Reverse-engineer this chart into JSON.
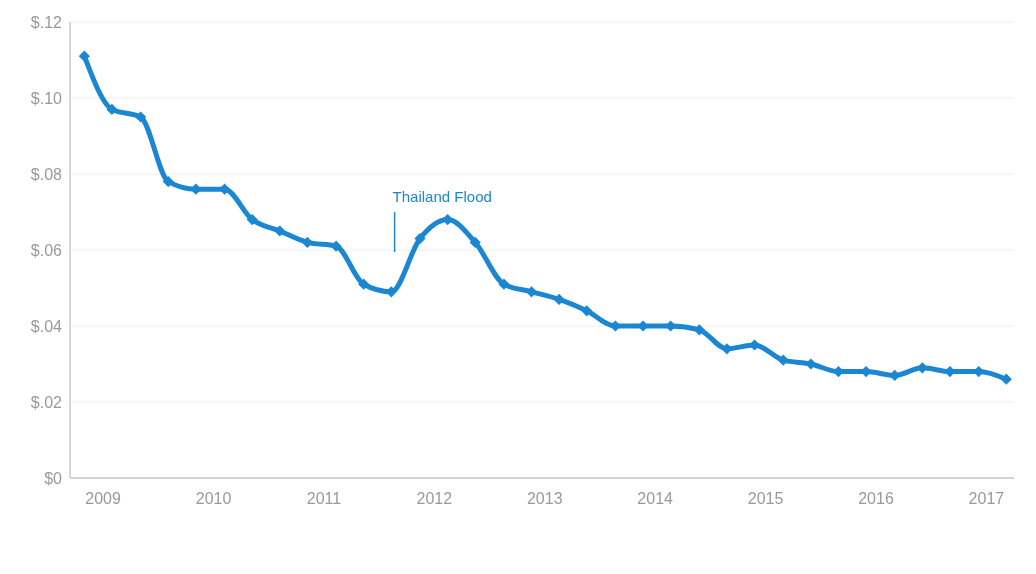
{
  "chart_data": {
    "type": "line",
    "x": [
      2008.83,
      2009.08,
      2009.34,
      2009.59,
      2009.84,
      2010.1,
      2010.35,
      2010.6,
      2010.85,
      2011.11,
      2011.36,
      2011.61,
      2011.87,
      2012.12,
      2012.37,
      2012.63,
      2012.88,
      2013.13,
      2013.38,
      2013.64,
      2013.89,
      2014.14,
      2014.4,
      2014.65,
      2014.9,
      2015.16,
      2015.41,
      2015.66,
      2015.91,
      2016.17,
      2016.42,
      2016.67,
      2016.93,
      2017.18
    ],
    "series": [
      {
        "color": "#1b87d3",
        "values": [
          0.111,
          0.097,
          0.095,
          0.078,
          0.076,
          0.076,
          0.068,
          0.065,
          0.062,
          0.061,
          0.051,
          0.049,
          0.063,
          0.068,
          0.062,
          0.051,
          0.049,
          0.047,
          0.044,
          0.04,
          0.04,
          0.04,
          0.039,
          0.034,
          0.035,
          0.031,
          0.03,
          0.028,
          0.028,
          0.027,
          0.029,
          0.028,
          0.028,
          0.026
        ]
      }
    ],
    "xlim": [
      2008.7,
      2017.25
    ],
    "xticks": [
      2009,
      2010,
      2011,
      2012,
      2013,
      2014,
      2015,
      2016,
      2017
    ],
    "ylim": [
      0,
      0.12
    ],
    "yticks": [
      {
        "value": 0,
        "label": "$0"
      },
      {
        "value": 0.02,
        "label": "$.02"
      },
      {
        "value": 0.04,
        "label": "$.04"
      },
      {
        "value": 0.06,
        "label": "$.06"
      },
      {
        "value": 0.08,
        "label": "$.08"
      },
      {
        "value": 0.1,
        "label": "$.10"
      },
      {
        "value": 0.12,
        "label": "$.12"
      }
    ],
    "grid": "y",
    "marker": "diamond",
    "line_style": "solid",
    "ref_lines": [
      {
        "axis": "x",
        "value": 2011.64,
        "label": "Thailand Flood",
        "color": "#1b87d3"
      }
    ]
  }
}
